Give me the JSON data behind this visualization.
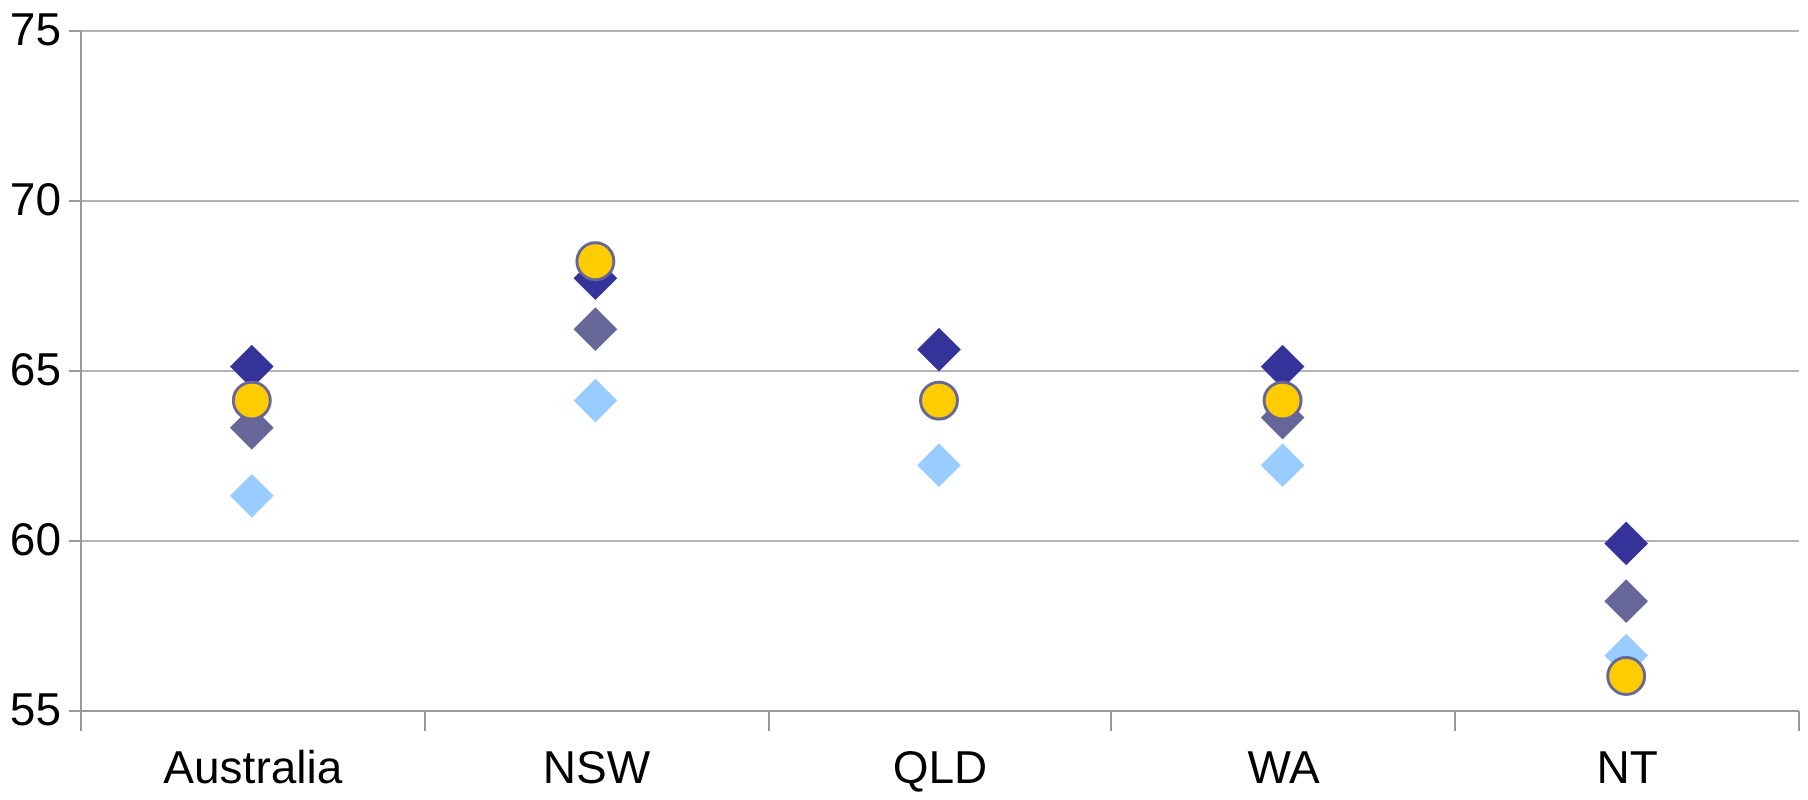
{
  "chart_data": {
    "type": "scatter",
    "categories": [
      "Australia",
      "NSW",
      "QLD",
      "WA",
      "NT"
    ],
    "series": [
      {
        "color": "#333399",
        "marker": "diamond",
        "values": [
          65.1,
          67.7,
          65.6,
          65.1,
          59.9
        ]
      },
      {
        "color": "#666699",
        "marker": "diamond",
        "values": [
          63.3,
          66.2,
          null,
          63.6,
          58.2
        ]
      },
      {
        "color": "#99ccff",
        "marker": "diamond",
        "values": [
          61.3,
          64.1,
          62.2,
          62.2,
          56.6
        ]
      },
      {
        "color": "#ffcc00",
        "marker": "circle",
        "values": [
          64.1,
          68.2,
          64.1,
          64.1,
          56.0
        ]
      }
    ],
    "ylim": [
      55,
      75
    ],
    "yticks": [
      55,
      60,
      65,
      70,
      75
    ],
    "grid": "y"
  }
}
